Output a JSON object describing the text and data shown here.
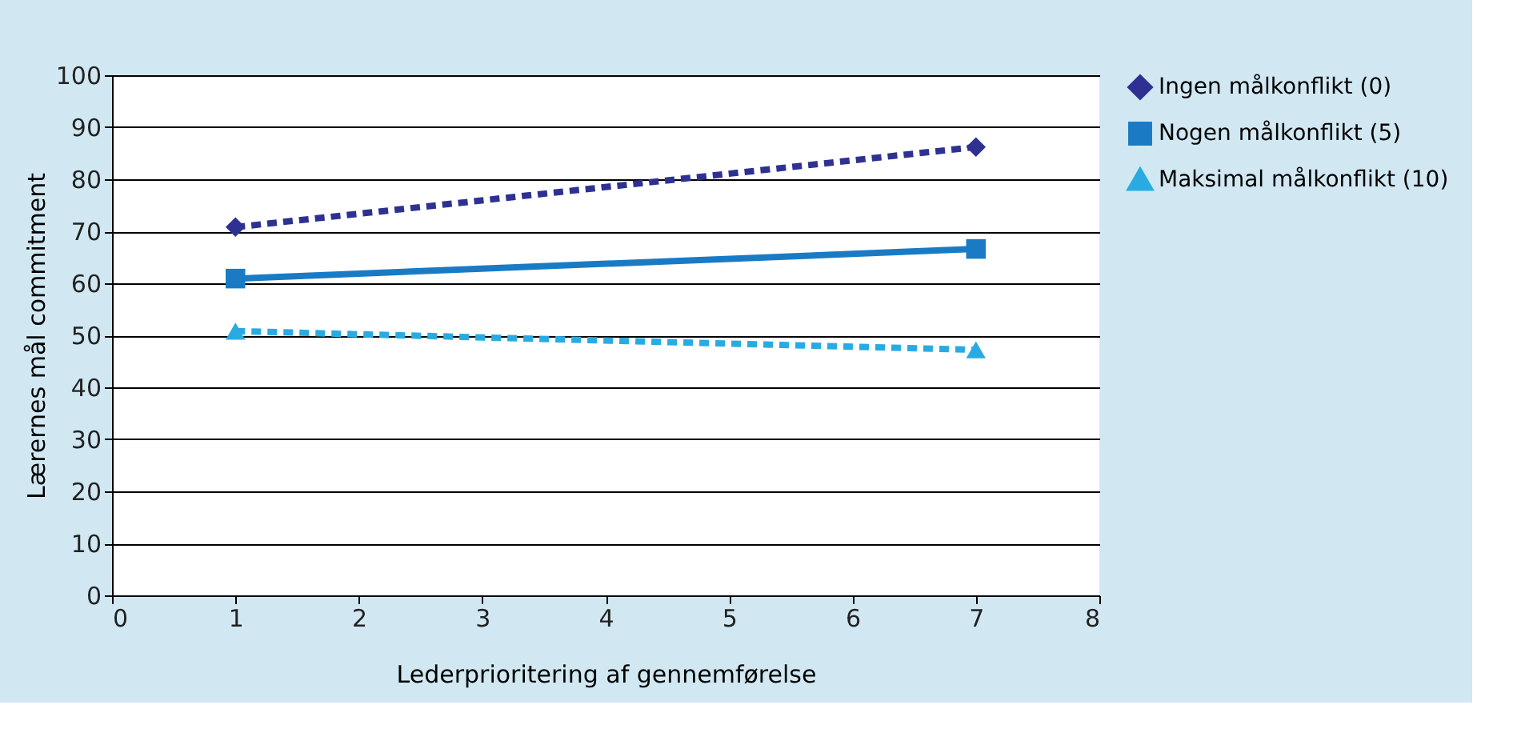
{
  "chart_data": {
    "type": "line",
    "xlabel": "Lederprioritering af gennemførelse",
    "ylabel": "Lærernes mål commitment",
    "xlim": [
      0,
      8
    ],
    "xticks": [
      0,
      1,
      2,
      3,
      4,
      5,
      6,
      7,
      8
    ],
    "ylim": [
      0,
      100
    ],
    "yticks": [
      0,
      10,
      20,
      30,
      40,
      50,
      60,
      70,
      80,
      90,
      100
    ],
    "grid": "y",
    "legend": "right",
    "x": [
      1,
      7
    ],
    "series": [
      {
        "name": "Ingen målkonflikt (0)",
        "color": "#2e3192",
        "values": [
          70.8,
          86.2
        ],
        "marker": "diamond",
        "line_style": "dashed"
      },
      {
        "name": "Nogen målkonflikt (5)",
        "color": "#1a7bc4",
        "values": [
          60.9,
          66.6
        ],
        "marker": "square",
        "line_style": "solid"
      },
      {
        "name": "Maksimal målkonflikt  (10)",
        "color": "#29abe2",
        "values": [
          50.8,
          47.2
        ],
        "marker": "triangle",
        "line_style": "dashed"
      }
    ]
  }
}
